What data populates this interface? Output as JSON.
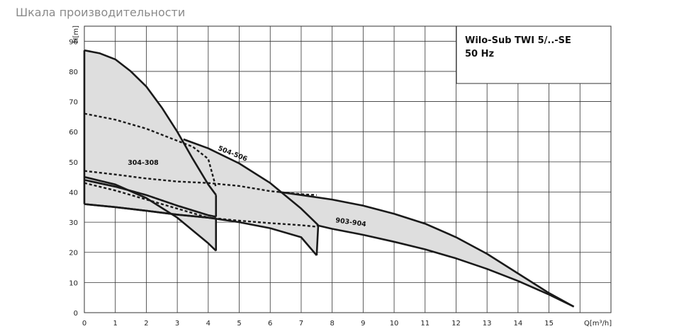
{
  "page": {
    "heading": "Шкала производительности"
  },
  "chart_data": {
    "type": "area",
    "title": "Wilo-Sub TWI 5/..-SE",
    "subtitle": "50 Hz",
    "xlabel": "Q[m³/h]",
    "ylabel": "H[m]",
    "xlim": [
      0,
      17
    ],
    "ylim": [
      0,
      95
    ],
    "x_ticks": [
      0,
      1,
      2,
      3,
      4,
      5,
      6,
      7,
      8,
      9,
      10,
      11,
      12,
      13,
      14,
      15
    ],
    "y_ticks": [
      0,
      10,
      20,
      30,
      40,
      50,
      60,
      70,
      80,
      90
    ],
    "grid": true,
    "legend_position": "top-right",
    "colors": {
      "fill": "#dedede",
      "line": "#1a1a1a",
      "grid": "#333333"
    },
    "series": [
      {
        "name": "304-308",
        "label_at": [
          1.4,
          49
        ],
        "upper": [
          [
            0,
            45
          ],
          [
            1,
            42.5
          ],
          [
            2,
            38
          ],
          [
            3,
            31.5
          ],
          [
            4,
            23
          ],
          [
            4.25,
            20.5
          ]
        ],
        "lower": [
          [
            0,
            36
          ],
          [
            1,
            35
          ],
          [
            2,
            33.8
          ],
          [
            3,
            32.5
          ],
          [
            4,
            31.5
          ],
          [
            4.25,
            31.2
          ]
        ],
        "dashed": [
          [
            0,
            44
          ],
          [
            1,
            41.8
          ],
          [
            2,
            39
          ],
          [
            3,
            35.5
          ],
          [
            4,
            32.3
          ],
          [
            4.25,
            31.8
          ]
        ]
      },
      {
        "name": "504-506",
        "label_at": [
          4.3,
          54
        ],
        "upper": [
          [
            0,
            87
          ],
          [
            0.5,
            86
          ],
          [
            1,
            84
          ],
          [
            1.5,
            80
          ],
          [
            2,
            75
          ],
          [
            2.5,
            68
          ],
          [
            3,
            60
          ],
          [
            3.5,
            51
          ],
          [
            4,
            42.5
          ],
          [
            4.25,
            39
          ]
        ],
        "lower": [
          [
            0,
            44
          ],
          [
            1,
            41.8
          ],
          [
            2,
            39
          ],
          [
            3,
            35.5
          ],
          [
            4,
            32.3
          ],
          [
            4.25,
            31.8
          ]
        ],
        "dashed": [
          [
            0,
            66
          ],
          [
            1,
            64
          ],
          [
            2,
            61
          ],
          [
            3,
            57
          ],
          [
            3.5,
            55
          ],
          [
            4,
            51
          ],
          [
            4.25,
            41.5
          ]
        ]
      },
      {
        "name": "903-904",
        "label_at": [
          8.1,
          30
        ],
        "upper": [
          [
            3.2,
            57.5
          ],
          [
            4,
            54.5
          ],
          [
            5,
            49.5
          ],
          [
            6,
            43
          ],
          [
            7,
            34.5
          ],
          [
            7.5,
            29.5
          ],
          [
            7.55,
            29
          ]
        ],
        "lower": [
          [
            0,
            36
          ],
          [
            1,
            35
          ],
          [
            2,
            33.8
          ],
          [
            3,
            32.5
          ],
          [
            4,
            31.5
          ],
          [
            5,
            30
          ],
          [
            6,
            28
          ],
          [
            7,
            25
          ],
          [
            7.5,
            19
          ]
        ],
        "dashed": [
          [
            0,
            47
          ],
          [
            1,
            45.8
          ],
          [
            2,
            44.5
          ],
          [
            3,
            43.5
          ],
          [
            4,
            43
          ],
          [
            5,
            42
          ],
          [
            6,
            40.3
          ],
          [
            7,
            39.3
          ],
          [
            7.5,
            39
          ]
        ]
      },
      {
        "name": "",
        "upper": [
          [
            6.3,
            40
          ],
          [
            7,
            39
          ],
          [
            8,
            37.5
          ],
          [
            9,
            35.5
          ],
          [
            10,
            32.8
          ],
          [
            11,
            29.5
          ],
          [
            12,
            25
          ],
          [
            13,
            19.5
          ],
          [
            14,
            13
          ],
          [
            15,
            6.5
          ],
          [
            15.8,
            2
          ]
        ],
        "lower": [
          [
            7.5,
            29
          ],
          [
            8,
            27.8
          ],
          [
            9,
            25.8
          ],
          [
            10,
            23.5
          ],
          [
            11,
            21
          ],
          [
            12,
            18
          ],
          [
            13,
            14.5
          ],
          [
            14,
            10.5
          ],
          [
            15,
            6
          ],
          [
            15.8,
            2
          ]
        ],
        "dashed": [
          [
            0,
            43
          ],
          [
            1,
            40.5
          ],
          [
            2,
            37.5
          ],
          [
            3,
            34.5
          ],
          [
            4,
            31.5
          ],
          [
            5,
            30.5
          ],
          [
            6,
            29.7
          ],
          [
            7,
            29
          ],
          [
            7.5,
            28.5
          ]
        ]
      }
    ]
  }
}
